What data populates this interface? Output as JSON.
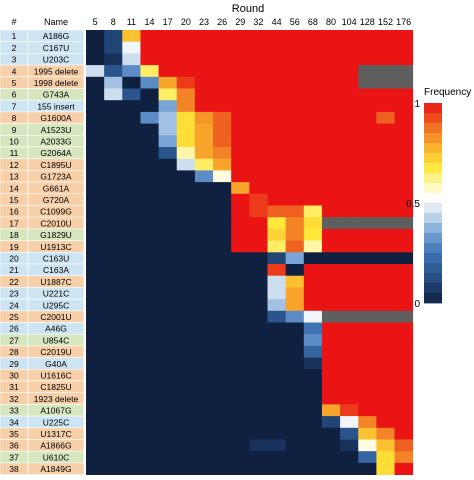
{
  "chart_data": {
    "type": "heatmap",
    "title": "Round",
    "column_headers": {
      "index": "#",
      "name": "Name"
    },
    "x": [
      "5",
      "8",
      "11",
      "14",
      "17",
      "20",
      "23",
      "26",
      "29",
      "32",
      "44",
      "56",
      "68",
      "80",
      "104",
      "128",
      "152",
      "176"
    ],
    "rows": [
      {
        "n": "1",
        "name": "A186G",
        "group": "b",
        "values": [
          0,
          0.1,
          0.75,
          1,
          1,
          1,
          1,
          1,
          1,
          1,
          1,
          1,
          1,
          1,
          1,
          1,
          1,
          1
        ]
      },
      {
        "n": "2",
        "name": "C167U",
        "group": "b",
        "values": [
          0,
          0.1,
          0.5,
          1,
          1,
          1,
          1,
          1,
          1,
          1,
          1,
          1,
          1,
          1,
          1,
          1,
          1,
          1
        ]
      },
      {
        "n": "3",
        "name": "U203C",
        "group": "b",
        "values": [
          0,
          0.05,
          0.45,
          1,
          1,
          1,
          1,
          1,
          1,
          1,
          1,
          1,
          1,
          1,
          1,
          1,
          1,
          1
        ]
      },
      {
        "n": "4",
        "name": "1995 delete",
        "group": "o",
        "values": [
          0.45,
          0.15,
          0.3,
          0.65,
          1,
          1,
          1,
          1,
          1,
          1,
          1,
          1,
          1,
          1,
          1,
          -1,
          -1,
          -1
        ]
      },
      {
        "n": "5",
        "name": "1998 delete",
        "group": "o",
        "values": [
          0,
          0.4,
          0,
          0.3,
          0.8,
          0.95,
          1,
          1,
          1,
          1,
          1,
          1,
          1,
          1,
          1,
          -1,
          -1,
          -1
        ]
      },
      {
        "n": "6",
        "name": "G743A",
        "group": "g",
        "values": [
          0,
          0.45,
          0.15,
          0,
          0.65,
          0.85,
          1,
          1,
          1,
          1,
          1,
          1,
          1,
          1,
          1,
          1,
          1,
          1
        ]
      },
      {
        "n": "7",
        "name": "155 insert",
        "group": "b",
        "values": [
          0,
          0,
          0,
          0,
          0.35,
          0.85,
          1,
          1,
          1,
          1,
          1,
          1,
          1,
          1,
          1,
          1,
          1,
          1
        ]
      },
      {
        "n": "8",
        "name": "G1600A",
        "group": "o",
        "values": [
          0,
          0,
          0,
          0.3,
          0.4,
          0.7,
          0.82,
          0.9,
          1,
          1,
          1,
          1,
          1,
          1,
          1,
          1,
          0.9,
          1
        ]
      },
      {
        "n": "9",
        "name": "A1523U",
        "group": "g",
        "values": [
          0,
          0,
          0,
          0,
          0.4,
          0.7,
          0.8,
          0.9,
          1,
          1,
          1,
          1,
          1,
          1,
          1,
          1,
          1,
          1
        ]
      },
      {
        "n": "10",
        "name": "A2033G",
        "group": "g",
        "values": [
          0,
          0,
          0,
          0,
          0.35,
          0.7,
          0.8,
          0.9,
          1,
          1,
          1,
          1,
          1,
          1,
          1,
          1,
          1,
          1
        ]
      },
      {
        "n": "11",
        "name": "G2064A",
        "group": "g",
        "values": [
          0,
          0,
          0,
          0,
          0.15,
          0.6,
          0.8,
          0.85,
          1,
          1,
          1,
          1,
          1,
          1,
          1,
          1,
          1,
          1
        ]
      },
      {
        "n": "12",
        "name": "C1895U",
        "group": "o",
        "values": [
          0,
          0,
          0,
          0,
          0,
          0.45,
          0.65,
          0.8,
          1,
          1,
          1,
          1,
          1,
          1,
          1,
          1,
          1,
          1
        ]
      },
      {
        "n": "13",
        "name": "G1723A",
        "group": "o",
        "values": [
          0,
          0,
          0,
          0,
          0,
          0,
          0.3,
          0.55,
          1,
          1,
          1,
          1,
          1,
          1,
          1,
          1,
          1,
          1
        ]
      },
      {
        "n": "14",
        "name": "G661A",
        "group": "o",
        "values": [
          0,
          0,
          0,
          0,
          0,
          0,
          0,
          0,
          0.8,
          1,
          1,
          1,
          1,
          1,
          1,
          1,
          1,
          1
        ]
      },
      {
        "n": "15",
        "name": "G720A",
        "group": "o",
        "values": [
          0,
          0,
          0,
          0,
          0,
          0,
          0,
          0,
          1,
          0.95,
          1,
          1,
          1,
          1,
          1,
          1,
          1,
          1
        ]
      },
      {
        "n": "16",
        "name": "C1099G",
        "group": "o",
        "values": [
          0,
          0,
          0,
          0,
          0,
          0,
          0,
          0,
          1,
          0.95,
          0.9,
          0.9,
          0.65,
          1,
          1,
          1,
          1,
          1
        ]
      },
      {
        "n": "17",
        "name": "C2010U",
        "group": "o",
        "values": [
          0,
          0,
          0,
          0,
          0,
          0,
          0,
          0,
          1,
          1,
          0.68,
          0.85,
          0.7,
          -1,
          -1,
          -1,
          -1,
          -1
        ]
      },
      {
        "n": "18",
        "name": "G1829U",
        "group": "g",
        "values": [
          0,
          0,
          0,
          0,
          0,
          0,
          0,
          0,
          1,
          1,
          0.72,
          0.85,
          0.68,
          1,
          1,
          1,
          1,
          1
        ]
      },
      {
        "n": "19",
        "name": "U1913C",
        "group": "o",
        "values": [
          0,
          0,
          0,
          0,
          0,
          0,
          0,
          0,
          1,
          1,
          0.65,
          0.9,
          0.6,
          1,
          1,
          1,
          1,
          1
        ]
      },
      {
        "n": "20",
        "name": "C163U",
        "group": "b",
        "values": [
          0,
          0,
          0,
          0,
          0,
          0,
          0,
          0,
          0,
          0,
          0.1,
          0.35,
          0,
          0,
          0,
          0,
          0,
          0
        ]
      },
      {
        "n": "21",
        "name": "C163A",
        "group": "b",
        "values": [
          0,
          0,
          0,
          0,
          0,
          0,
          0,
          0,
          0,
          0,
          0.95,
          0,
          1,
          1,
          1,
          1,
          1,
          1
        ]
      },
      {
        "n": "22",
        "name": "U1887C",
        "group": "o",
        "values": [
          0,
          0,
          0,
          0,
          0,
          0,
          0,
          0,
          0,
          0,
          0.45,
          0.75,
          1,
          1,
          1,
          1,
          1,
          1
        ]
      },
      {
        "n": "23",
        "name": "U221C",
        "group": "b",
        "values": [
          0,
          0,
          0,
          0,
          0,
          0,
          0,
          0,
          0,
          0,
          0.45,
          0.8,
          1,
          1,
          1,
          1,
          1,
          1
        ]
      },
      {
        "n": "24",
        "name": "U295C",
        "group": "b",
        "values": [
          0,
          0,
          0,
          0,
          0,
          0,
          0,
          0,
          0,
          0,
          0.4,
          0.8,
          1,
          1,
          1,
          1,
          1,
          1
        ]
      },
      {
        "n": "25",
        "name": "C2001U",
        "group": "o",
        "values": [
          0,
          0,
          0,
          0,
          0,
          0,
          0,
          0,
          0,
          0,
          0.15,
          0.3,
          0.5,
          -1,
          -1,
          -1,
          -1,
          -1
        ]
      },
      {
        "n": "26",
        "name": "A46G",
        "group": "b",
        "values": [
          0,
          0,
          0,
          0,
          0,
          0,
          0,
          0,
          0,
          0,
          0,
          0,
          0.25,
          1,
          1,
          1,
          1,
          1
        ]
      },
      {
        "n": "27",
        "name": "U854C",
        "group": "g",
        "values": [
          0,
          0,
          0,
          0,
          0,
          0,
          0,
          0,
          0,
          0,
          0,
          0,
          0.3,
          1,
          1,
          1,
          1,
          1
        ]
      },
      {
        "n": "28",
        "name": "C2019U",
        "group": "o",
        "values": [
          0,
          0,
          0,
          0,
          0,
          0,
          0,
          0,
          0,
          0,
          0,
          0,
          0.2,
          1,
          1,
          1,
          1,
          1
        ]
      },
      {
        "n": "29",
        "name": "G40A",
        "group": "b",
        "values": [
          0,
          0,
          0,
          0,
          0,
          0,
          0,
          0,
          0,
          0,
          0,
          0,
          0.05,
          1,
          1,
          1,
          1,
          1
        ]
      },
      {
        "n": "30",
        "name": "U1616C",
        "group": "o",
        "values": [
          0,
          0,
          0,
          0,
          0,
          0,
          0,
          0,
          0,
          0,
          0,
          0,
          0,
          1,
          1,
          1,
          1,
          1
        ]
      },
      {
        "n": "31",
        "name": "C1825U",
        "group": "o",
        "values": [
          0,
          0,
          0,
          0,
          0,
          0,
          0,
          0,
          0,
          0,
          0,
          0,
          0,
          1,
          1,
          1,
          1,
          1
        ]
      },
      {
        "n": "32",
        "name": "1923 delete",
        "group": "o",
        "values": [
          0,
          0,
          0,
          0,
          0,
          0,
          0,
          0,
          0,
          0,
          0,
          0,
          0,
          1,
          1,
          1,
          1,
          1
        ]
      },
      {
        "n": "33",
        "name": "A1067G",
        "group": "g",
        "values": [
          0,
          0,
          0,
          0,
          0,
          0,
          0,
          0,
          0,
          0,
          0,
          0,
          0,
          0.8,
          0.95,
          1,
          1,
          1
        ]
      },
      {
        "n": "34",
        "name": "U225C",
        "group": "b",
        "values": [
          0,
          0,
          0,
          0,
          0,
          0,
          0,
          0,
          0,
          0,
          0,
          0,
          0,
          0.1,
          0.5,
          0.85,
          1,
          1
        ]
      },
      {
        "n": "35",
        "name": "U1317C",
        "group": "o",
        "values": [
          0,
          0,
          0,
          0,
          0,
          0,
          0,
          0,
          0,
          0,
          0,
          0,
          0,
          0,
          0.15,
          0.75,
          0.85,
          1
        ]
      },
      {
        "n": "36",
        "name": "A1866G",
        "group": "o",
        "values": [
          0,
          0,
          0,
          0,
          0,
          0,
          0,
          0,
          0,
          0.05,
          0.05,
          0,
          0,
          0,
          0.05,
          0.55,
          0.75,
          0.9
        ]
      },
      {
        "n": "37",
        "name": "U610C",
        "group": "g",
        "values": [
          0,
          0,
          0,
          0,
          0,
          0,
          0,
          0,
          0,
          0,
          0,
          0,
          0,
          0,
          0,
          0.2,
          0.7,
          0.85
        ]
      },
      {
        "n": "38",
        "name": "A1849G",
        "group": "o",
        "values": [
          0,
          0,
          0,
          0,
          0,
          0,
          0,
          0,
          0,
          0,
          0,
          0,
          0,
          0,
          0,
          0,
          0.7,
          1
        ]
      }
    ],
    "colorbar": {
      "label": "Frequency",
      "ticks": [
        "1",
        "0.5",
        "0"
      ],
      "tick_values": [
        1,
        0.5,
        0
      ],
      "range": [
        0,
        1
      ]
    },
    "missing_color": "#5f5f5f",
    "row_group_colors": {
      "b": "#cde4f2",
      "o": "#f7cfa8",
      "g": "#d6e7c0"
    }
  }
}
